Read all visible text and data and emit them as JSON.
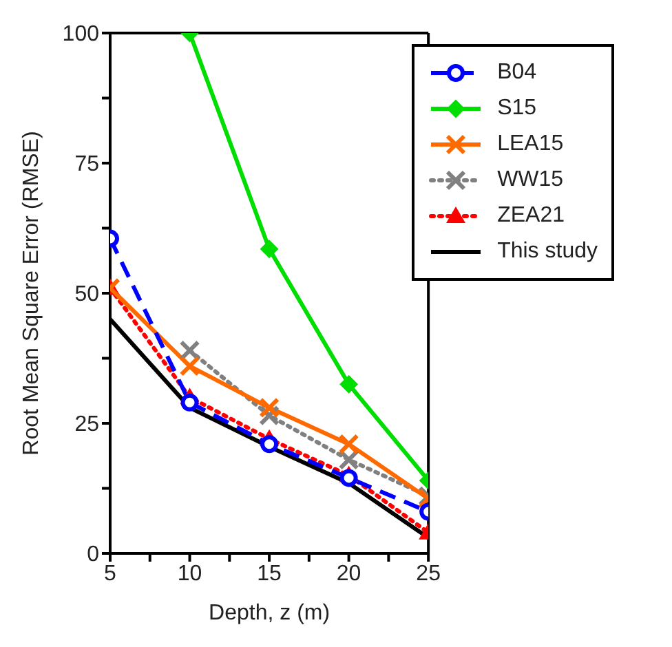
{
  "chart_data": {
    "type": "line",
    "xlabel": "Depth, z (m)",
    "ylabel": "Root Mean Square Error (RMSE)",
    "x": [
      5,
      10,
      15,
      20,
      25
    ],
    "xlim": [
      5,
      25
    ],
    "xticks": [
      5,
      {
        "value": 7.5,
        "label": null
      },
      10,
      {
        "value": 12.5,
        "label": null
      },
      15,
      {
        "value": 17.5,
        "label": null
      },
      20,
      {
        "value": 22.5,
        "label": null
      },
      25
    ],
    "ylim": [
      0,
      100
    ],
    "yticks": [
      0,
      {
        "value": 12.5,
        "label": null
      },
      25,
      {
        "value": 37.5,
        "label": null
      },
      50,
      {
        "value": 62.5,
        "label": null
      },
      75,
      {
        "value": 87.5,
        "label": null
      },
      100
    ],
    "grid": false,
    "legend": "top right",
    "series": [
      {
        "name": "B04",
        "color": "#0000ff",
        "values": [
          60.5,
          29,
          21,
          14.5,
          8
        ],
        "marker": "circle",
        "line_style": "dashed"
      },
      {
        "name": "S15",
        "color": "#00dd00",
        "values": [
          null,
          100,
          58.5,
          32.5,
          14
        ],
        "marker": "diamond",
        "line_style": "solid"
      },
      {
        "name": "LEA15",
        "color": "#ff6a00",
        "values": [
          51,
          36,
          28,
          21,
          10.5
        ],
        "marker": "cross",
        "line_style": "solid"
      },
      {
        "name": "WW15",
        "color": "#808080",
        "values": [
          null,
          39,
          26.5,
          18,
          11
        ],
        "marker": "cross",
        "line_style": "dotted"
      },
      {
        "name": "ZEA21",
        "color": "#ff0000",
        "values": [
          51,
          30,
          22,
          15,
          4
        ],
        "marker": "triangle",
        "line_style": "dotted"
      },
      {
        "name": "This study",
        "color": "#000000",
        "values": [
          45,
          28,
          20.5,
          13.5,
          3
        ],
        "marker": "none",
        "line_style": "solid"
      }
    ]
  }
}
